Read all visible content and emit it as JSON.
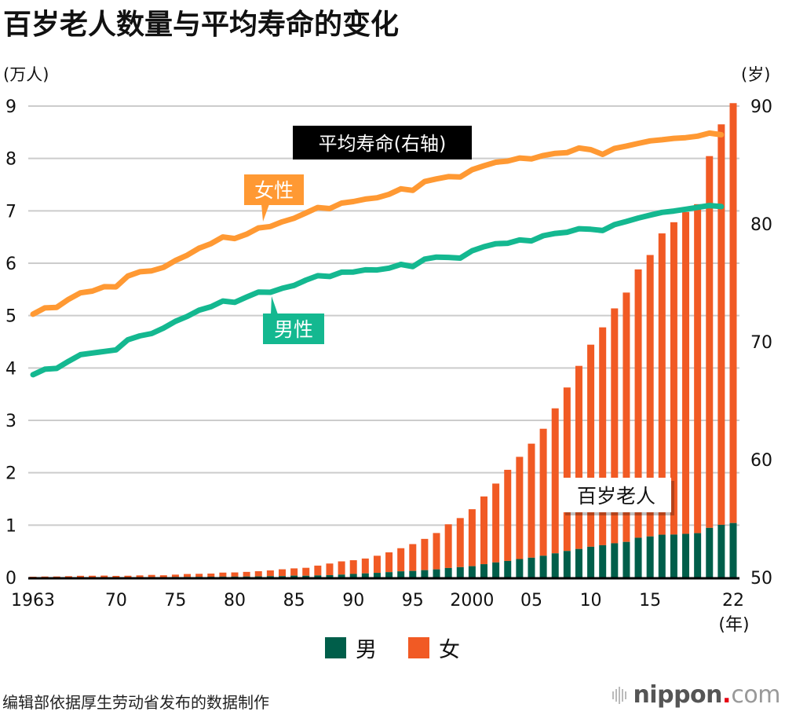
{
  "title": "百岁老人数量与平均寿命的变化",
  "colors": {
    "male_bar": "#005e4a",
    "female_bar": "#f15a24",
    "female_line": "#ff9933",
    "male_line": "#14b890",
    "grid": "#cccccc",
    "axis": "#000000",
    "annotation_dark_bg": "#000000"
  },
  "chart_data": {
    "type": "bar",
    "subtype": "stacked bar with dual-axis lines",
    "title": "百岁老人数量与平均寿命的变化",
    "xlabel": "(年)",
    "ylabel_left": "(万人)",
    "ylabel_right": "(岁)",
    "ylim_left": [
      0,
      9
    ],
    "ylim_right": [
      50,
      90
    ],
    "yticks_left": [
      "0",
      "1",
      "2",
      "3",
      "4",
      "5",
      "6",
      "7",
      "8",
      "9"
    ],
    "yticks_right": [
      "50",
      "60",
      "70",
      "80",
      "90"
    ],
    "xticks": [
      {
        "year": 1963,
        "label": "1963"
      },
      {
        "year": 1970,
        "label": "70"
      },
      {
        "year": 1975,
        "label": "75"
      },
      {
        "year": 1980,
        "label": "80"
      },
      {
        "year": 1985,
        "label": "85"
      },
      {
        "year": 1990,
        "label": "90"
      },
      {
        "year": 1995,
        "label": "95"
      },
      {
        "year": 2000,
        "label": "2000"
      },
      {
        "year": 2005,
        "label": "05"
      },
      {
        "year": 2010,
        "label": "10"
      },
      {
        "year": 2015,
        "label": "15"
      },
      {
        "year": 2022,
        "label": "22"
      }
    ],
    "grid": true,
    "legend": {
      "position": "bottom",
      "entries": [
        {
          "name": "男",
          "color": "#005e4a"
        },
        {
          "name": "女",
          "color": "#f15a24"
        }
      ]
    },
    "annotations": {
      "life_expectancy": "平均寿命(右轴)",
      "female": "女性",
      "male": "男性",
      "centenarians": "百岁老人"
    },
    "years": [
      1963,
      1964,
      1965,
      1966,
      1967,
      1968,
      1969,
      1970,
      1971,
      1972,
      1973,
      1974,
      1975,
      1976,
      1977,
      1978,
      1979,
      1980,
      1981,
      1982,
      1983,
      1984,
      1985,
      1986,
      1987,
      1988,
      1989,
      1990,
      1991,
      1992,
      1993,
      1994,
      1995,
      1996,
      1997,
      1998,
      1999,
      2000,
      2001,
      2002,
      2003,
      2004,
      2005,
      2006,
      2007,
      2008,
      2009,
      2010,
      2011,
      2012,
      2013,
      2014,
      2015,
      2016,
      2017,
      2018,
      2019,
      2020,
      2021,
      2022
    ],
    "series": [
      {
        "name": "男",
        "type": "bar",
        "axis": "left",
        "unit": "万人",
        "values": [
          0.002,
          0.0031,
          0.0036,
          0.0045,
          0.0056,
          0.0066,
          0.0053,
          0.0062,
          0.007,
          0.0078,
          0.0087,
          0.0076,
          0.0102,
          0.0105,
          0.0127,
          0.0155,
          0.0173,
          0.0174,
          0.0189,
          0.0211,
          0.025,
          0.0261,
          0.0359,
          0.034,
          0.0397,
          0.0446,
          0.0552,
          0.068,
          0.0785,
          0.0887,
          0.1022,
          0.1178,
          0.1255,
          0.14,
          0.155,
          0.1812,
          0.1973,
          0.2158,
          0.2541,
          0.2875,
          0.3159,
          0.3523,
          0.3779,
          0.415,
          0.4613,
          0.5063,
          0.5447,
          0.5869,
          0.6162,
          0.6534,
          0.6791,
          0.7586,
          0.784,
          0.8167,
          0.8197,
          0.8331,
          0.8463,
          0.9475,
          1.006,
          1.0397
        ]
      },
      {
        "name": "女",
        "type": "bar",
        "axis": "left",
        "unit": "万人",
        "values": [
          0.0133,
          0.016,
          0.0162,
          0.0207,
          0.0271,
          0.0273,
          0.0312,
          0.0248,
          0.0269,
          0.0327,
          0.0408,
          0.0351,
          0.0446,
          0.0561,
          0.0578,
          0.0597,
          0.0764,
          0.0794,
          0.0883,
          0.099,
          0.1104,
          0.1306,
          0.1381,
          0.1511,
          0.1874,
          0.2222,
          0.2526,
          0.2618,
          0.284,
          0.3265,
          0.378,
          0.4415,
          0.5123,
          0.5973,
          0.6941,
          0.8346,
          0.9373,
          1.0878,
          1.2934,
          1.5059,
          1.7402,
          1.9515,
          2.1775,
          2.4245,
          2.7682,
          3.1213,
          3.4952,
          3.858,
          4.1594,
          4.4842,
          4.7606,
          5.1234,
          5.3728,
          5.7525,
          5.9627,
          6.1454,
          6.2811,
          7.0975,
          7.645,
          8.0161
        ]
      },
      {
        "name": "女性",
        "type": "line",
        "axis": "right",
        "unit": "岁",
        "values": [
          72.34,
          72.87,
          72.92,
          73.61,
          74.15,
          74.3,
          74.67,
          74.66,
          75.58,
          75.94,
          76.02,
          76.31,
          76.89,
          77.35,
          77.95,
          78.33,
          78.89,
          78.76,
          79.13,
          79.66,
          79.78,
          80.18,
          80.48,
          80.93,
          81.39,
          81.3,
          81.77,
          81.9,
          82.11,
          82.22,
          82.51,
          82.98,
          82.85,
          83.59,
          83.82,
          84.01,
          83.99,
          84.6,
          84.93,
          85.23,
          85.33,
          85.59,
          85.52,
          85.81,
          85.99,
          86.05,
          86.44,
          86.3,
          85.9,
          86.41,
          86.61,
          86.83,
          87.05,
          87.14,
          87.26,
          87.32,
          87.45,
          87.71,
          87.57,
          null
        ]
      },
      {
        "name": "男性",
        "type": "line",
        "axis": "right",
        "unit": "岁",
        "values": [
          67.21,
          67.67,
          67.74,
          68.35,
          68.91,
          69.05,
          69.18,
          69.31,
          70.17,
          70.5,
          70.7,
          71.16,
          71.73,
          72.15,
          72.69,
          72.97,
          73.46,
          73.35,
          73.79,
          74.22,
          74.2,
          74.54,
          74.78,
          75.23,
          75.61,
          75.54,
          75.91,
          75.92,
          76.11,
          76.09,
          76.25,
          76.57,
          76.38,
          77.01,
          77.19,
          77.16,
          77.1,
          77.72,
          78.07,
          78.32,
          78.36,
          78.64,
          78.56,
          79.0,
          79.19,
          79.29,
          79.59,
          79.55,
          79.44,
          79.94,
          80.21,
          80.5,
          80.75,
          80.98,
          81.09,
          81.25,
          81.41,
          81.56,
          81.47,
          null
        ]
      }
    ]
  },
  "legend": {
    "male_label": "男",
    "female_label": "女"
  },
  "footer": {
    "source": "编辑部依据厚生劳动省发布的数据制作",
    "logo_main": "nippon",
    "logo_dot": ".",
    "logo_suffix": "com"
  }
}
